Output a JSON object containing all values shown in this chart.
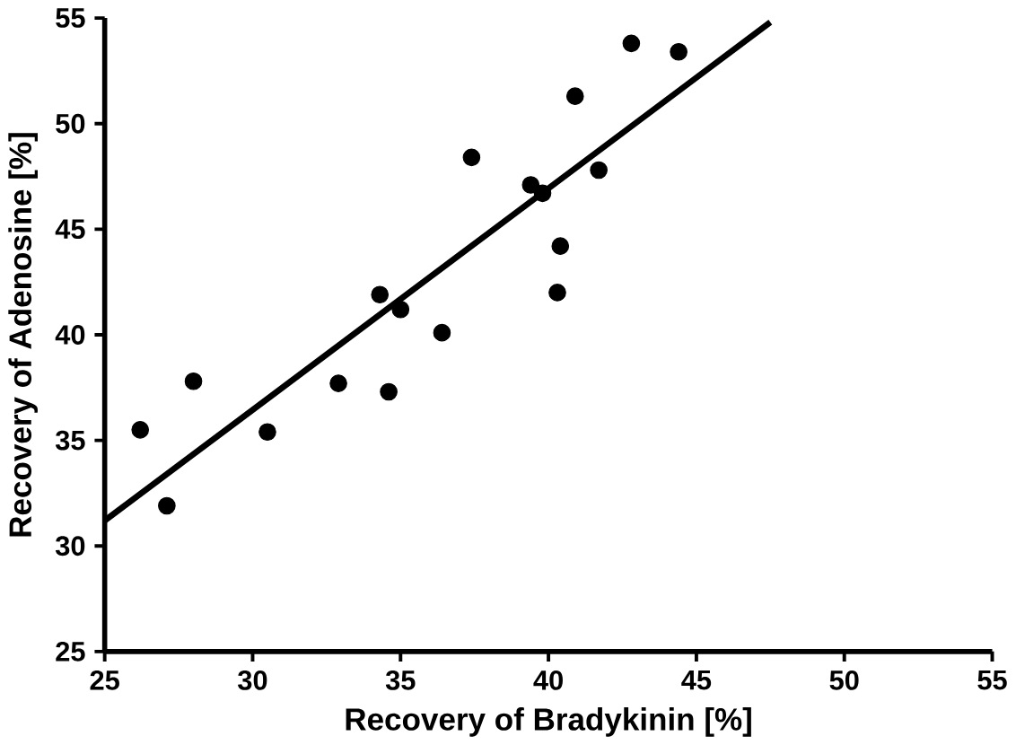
{
  "chart_data": {
    "type": "scatter",
    "xlabel": "Recovery of Bradykinin [%]",
    "ylabel": "Recovery of Adenosine [%]",
    "xlim": [
      25,
      55
    ],
    "ylim": [
      25,
      55
    ],
    "xticks": [
      25,
      30,
      35,
      40,
      45,
      50,
      55
    ],
    "yticks": [
      25,
      30,
      35,
      40,
      45,
      50,
      55
    ],
    "marker": "circle",
    "grid": false,
    "series": [
      {
        "color": "#000000",
        "x": [
          26.2,
          27.1,
          28.0,
          30.5,
          32.9,
          34.3,
          34.6,
          35.0,
          36.4,
          37.4,
          39.4,
          39.8,
          40.4,
          40.3,
          40.9,
          41.7,
          42.8,
          44.4
        ],
        "values": [
          35.5,
          31.9,
          37.8,
          35.4,
          37.7,
          41.9,
          37.3,
          41.2,
          40.1,
          48.4,
          47.1,
          46.7,
          44.2,
          42.0,
          51.3,
          47.8,
          53.8,
          53.4
        ]
      },
      {
        "type": "line",
        "color": "#000000",
        "x": [
          25,
          47.5
        ],
        "values": [
          31.2,
          54.8
        ],
        "marker": "none",
        "line_style": "solid"
      }
    ]
  }
}
